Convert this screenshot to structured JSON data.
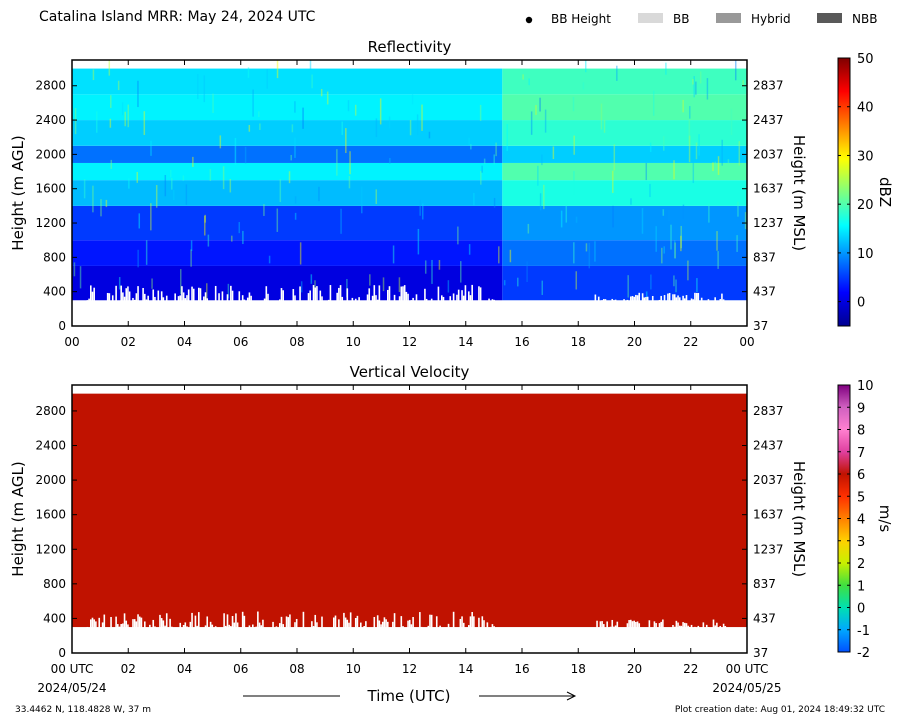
{
  "header": {
    "title": "Catalina Island MRR:  May 24, 2024 UTC",
    "legend": [
      {
        "label": "BB Height",
        "kind": "dot",
        "color": "#000000"
      },
      {
        "label": "BB",
        "kind": "box",
        "color": "#d9d9d9"
      },
      {
        "label": "Hybrid",
        "kind": "box",
        "color": "#999999"
      },
      {
        "label": "NBB",
        "kind": "box",
        "color": "#595959"
      }
    ]
  },
  "chart_data": [
    {
      "type": "heatmap",
      "title": "Reflectivity",
      "xlabel": "",
      "ylabel": "Height (m AGL)",
      "ylabel_right": "Height (m MSL)",
      "x_ticks": [
        "00",
        "02",
        "04",
        "06",
        "08",
        "10",
        "12",
        "14",
        "16",
        "18",
        "20",
        "22",
        "00"
      ],
      "xlim": [
        0,
        24
      ],
      "ylim": [
        0,
        3100
      ],
      "y_ticks": [
        0,
        400,
        800,
        1200,
        1600,
        2000,
        2400,
        2800
      ],
      "y_ticks_right": [
        "37",
        "437",
        "837",
        "1237",
        "1637",
        "2037",
        "2437",
        "2837"
      ],
      "data_top_m": 3000,
      "data_bottom_m": 300,
      "colorbar": {
        "label": "dBZ",
        "min": -5,
        "max": 50,
        "ticks": [
          0,
          10,
          20,
          30,
          40,
          50
        ],
        "colors": [
          "#00008f",
          "#0000ff",
          "#007fff",
          "#00ffff",
          "#7fff7f",
          "#ffff00",
          "#ff7f00",
          "#ff0000",
          "#7f0000"
        ]
      },
      "layers": [
        {
          "from_m": 300,
          "to_m": 700,
          "dbz": 0
        },
        {
          "from_m": 700,
          "to_m": 1000,
          "dbz": 3
        },
        {
          "from_m": 1000,
          "to_m": 1400,
          "dbz": 5
        },
        {
          "from_m": 1400,
          "to_m": 1700,
          "dbz": 12
        },
        {
          "from_m": 1700,
          "to_m": 1900,
          "dbz": 15
        },
        {
          "from_m": 1900,
          "to_m": 2100,
          "dbz": 8
        },
        {
          "from_m": 2100,
          "to_m": 2400,
          "dbz": 13
        },
        {
          "from_m": 2400,
          "to_m": 2700,
          "dbz": 15
        },
        {
          "from_m": 2700,
          "to_m": 3000,
          "dbz": 14
        }
      ]
    },
    {
      "type": "heatmap",
      "title": "Vertical Velocity",
      "xlabel": "Time (UTC)",
      "ylabel": "Height (m AGL)",
      "ylabel_right": "Height (m MSL)",
      "x_ticks": [
        "00 UTC",
        "02",
        "04",
        "06",
        "08",
        "10",
        "12",
        "14",
        "16",
        "18",
        "20",
        "22",
        "00 UTC"
      ],
      "x_dates": [
        "2024/05/24",
        "2024/05/25"
      ],
      "xlim": [
        0,
        24
      ],
      "ylim": [
        0,
        3100
      ],
      "y_ticks": [
        0,
        400,
        800,
        1200,
        1600,
        2000,
        2400,
        2800
      ],
      "y_ticks_right": [
        "37",
        "437",
        "837",
        "1237",
        "1637",
        "2037",
        "2437",
        "2837"
      ],
      "data_top_m": 3000,
      "data_bottom_m": 300,
      "fill_value_m_s": 6,
      "fill_color": "#c01200",
      "colorbar": {
        "label": "m/s",
        "min": -2,
        "max": 10,
        "ticks": [
          -2,
          -1,
          0,
          1,
          2,
          3,
          4,
          5,
          6,
          7,
          8,
          9,
          10
        ],
        "colors": [
          "#0050ff",
          "#00a8ff",
          "#00e0b0",
          "#40e040",
          "#c8f000",
          "#ffd000",
          "#ff8000",
          "#ff3000",
          "#c01200",
          "#e040a0",
          "#ff80d0",
          "#d060c0",
          "#800080"
        ]
      }
    }
  ],
  "footer": {
    "coords": "33.4462 N, 118.4828 W, 37 m",
    "created": "Plot creation date: Aug 01, 2024 18:49:32 UTC"
  }
}
